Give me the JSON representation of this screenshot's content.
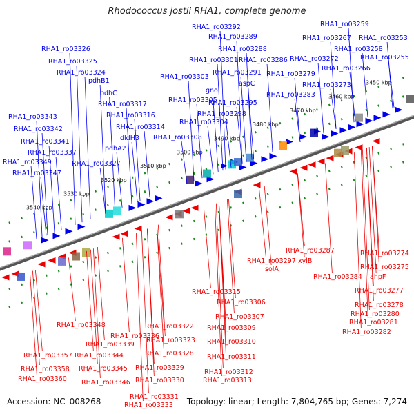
{
  "title": "Rhodococcus jostii RHA1, complete genome",
  "footer": {
    "accession": "Accession: NC_008268",
    "summary": "Topology: linear; Length: 7,804,765 bp; Genes: 7,274"
  },
  "colors": {
    "forward": "#0000ee",
    "reverse": "#ee0000",
    "backbone": "#888888",
    "tick": "#1a8a1a"
  },
  "scale_labels": [
    "3450 kbp",
    "3460 kbp",
    "3470 kbp",
    "3480 kbp",
    "3490 kbp",
    "3500 kbp",
    "3510 kbp",
    "3520 kbp",
    "3530 kbp",
    "3540 kbp"
  ],
  "forward_genes": [
    "RHA1_ro03259",
    "RHA1_ro03292",
    "RHA1_ro03289",
    "RHA1_ro03267",
    "RHA1_ro03253",
    "RHA1_ro03326",
    "RHA1_ro03288",
    "RHA1_ro03258",
    "RHA1_ro03325",
    "RHA1_ro03301",
    "RHA1_ro03286",
    "RHA1_ro03272",
    "RHA1_ro03255",
    "RHA1_ro03266",
    "RHA1_ro03324",
    "RHA1_ro03303",
    "RHA1_ro03291",
    "RHA1_ro03279",
    "pdhB1",
    "aspC",
    "RHA1_ro03273",
    "gno",
    "pdhC",
    "RHA1_ro03305",
    "RHA1_ro03295",
    "RHA1_ro03283",
    "RHA1_ro03317",
    "RHA1_ro03298",
    "RHA1_ro03343",
    "RHA1_ro03316",
    "RHA1_ro03304",
    "RHA1_ro03342",
    "RHA1_ro03314",
    "dldH3",
    "RHA1_ro03308",
    "RHA1_ro03341",
    "pdhA2",
    "RHA1_ro03337",
    "RHA1_ro03349",
    "RHA1_ro03327",
    "RHA1_ro03347"
  ],
  "reverse_genes": [
    "RHA1_ro03287",
    "RHA1_ro03274",
    "RHA1_ro03297",
    "xylB",
    "RHA1_ro03275",
    "solA",
    "RHA1_ro03284",
    "ahpF",
    "RHA1_ro03315",
    "RHA1_ro03277",
    "RHA1_ro03306",
    "RHA1_ro03278",
    "RHA1_ro03307",
    "RHA1_ro03280",
    "RHA1_ro03348",
    "RHA1_ro03322",
    "RHA1_ro03309",
    "RHA1_ro03281",
    "RHA1_ro03336",
    "RHA1_ro03323",
    "RHA1_ro03282",
    "RHA1_ro03339",
    "RHA1_ro03310",
    "RHA1_ro03357",
    "RHA1_ro03344",
    "RHA1_ro03328",
    "RHA1_ro03311",
    "RHA1_ro03358",
    "RHA1_ro03345",
    "RHA1_ro03329",
    "RHA1_ro03312",
    "RHA1_ro03360",
    "RHA1_ro03346",
    "RHA1_ro03330",
    "RHA1_ro03313",
    "RHA1_ro03331",
    "RHA1_ro03333"
  ]
}
